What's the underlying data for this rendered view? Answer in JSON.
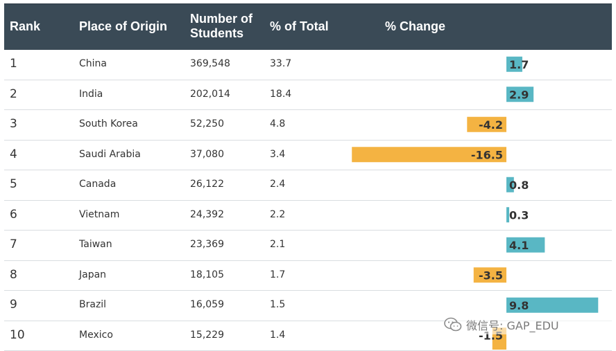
{
  "header": {
    "rank": "Rank",
    "place": "Place of Origin",
    "students": "Number of\nStudents",
    "pct_total": "% of Total",
    "pct_change": "% Change"
  },
  "chart_data": {
    "type": "table",
    "columns": [
      "Rank",
      "Place of Origin",
      "Number of Students",
      "% of Total",
      "% Change"
    ],
    "rows": [
      {
        "rank": "1",
        "place": "China",
        "students": "369,548",
        "pct_total": "33.7",
        "change": 1.7,
        "change_label": "1.7"
      },
      {
        "rank": "2",
        "place": "India",
        "students": "202,014",
        "pct_total": "18.4",
        "change": 2.9,
        "change_label": "2.9"
      },
      {
        "rank": "3",
        "place": "South Korea",
        "students": "52,250",
        "pct_total": "4.8",
        "change": -4.2,
        "change_label": "-4.2"
      },
      {
        "rank": "4",
        "place": "Saudi Arabia",
        "students": "37,080",
        "pct_total": "3.4",
        "change": -16.5,
        "change_label": "-16.5"
      },
      {
        "rank": "5",
        "place": "Canada",
        "students": "26,122",
        "pct_total": "2.4",
        "change": 0.8,
        "change_label": "0.8"
      },
      {
        "rank": "6",
        "place": "Vietnam",
        "students": "24,392",
        "pct_total": "2.2",
        "change": 0.3,
        "change_label": "0.3"
      },
      {
        "rank": "7",
        "place": "Taiwan",
        "students": "23,369",
        "pct_total": "2.1",
        "change": 4.1,
        "change_label": "4.1"
      },
      {
        "rank": "8",
        "place": "Japan",
        "students": "18,105",
        "pct_total": "1.7",
        "change": -3.5,
        "change_label": "-3.5"
      },
      {
        "rank": "9",
        "place": "Brazil",
        "students": "16,059",
        "pct_total": "1.5",
        "change": 9.8,
        "change_label": "9.8"
      },
      {
        "rank": "10",
        "place": "Mexico",
        "students": "15,229",
        "pct_total": "1.4",
        "change": -1.5,
        "change_label": "-1.5"
      }
    ],
    "colors": {
      "positive": "#59b7c4",
      "negative": "#f4b342",
      "header_bg": "#3a4a56"
    }
  },
  "watermark": {
    "icon": "wechat-icon",
    "text": "微信号: GAP_EDU"
  }
}
